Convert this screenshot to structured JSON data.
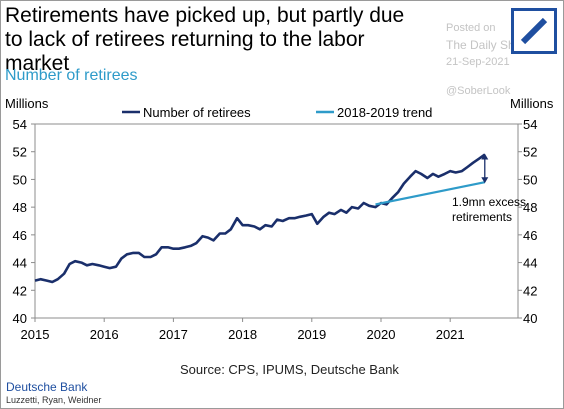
{
  "header": {
    "title": "Retirements have picked up, but partly due to lack of retirees returning to the labor market",
    "subtitle": "Number of retirees"
  },
  "watermark": {
    "posted_on": "Posted on",
    "site": "The Daily Shot",
    "date": "21-Sep-2021",
    "handle": "@SoberLook"
  },
  "footer": {
    "source": "Source: CPS, IPUMS, Deutsche Bank",
    "bank": "Deutsche Bank",
    "authors": "Luzzetti, Ryan, Weidner"
  },
  "colors": {
    "series": "#1a2f6b",
    "trend": "#2e9bc9",
    "logo": "#1f4fa0"
  },
  "chart_data": {
    "type": "line",
    "ylabel_left": "Millions",
    "ylabel_right": "Millions",
    "ylim": [
      40,
      54
    ],
    "yticks": [
      40,
      42,
      44,
      46,
      48,
      50,
      52,
      54
    ],
    "xlim": [
      2015,
      2021.98
    ],
    "xticks": [
      2015,
      2016,
      2017,
      2018,
      2019,
      2020,
      2021
    ],
    "legend_position": "top",
    "series": [
      {
        "name": "Number of retirees",
        "color": "#1a2f6b",
        "x": [
          2015.0,
          2015.08,
          2015.17,
          2015.25,
          2015.33,
          2015.42,
          2015.5,
          2015.58,
          2015.67,
          2015.75,
          2015.83,
          2015.92,
          2016.0,
          2016.08,
          2016.17,
          2016.25,
          2016.33,
          2016.42,
          2016.5,
          2016.58,
          2016.67,
          2016.75,
          2016.83,
          2016.92,
          2017.0,
          2017.08,
          2017.17,
          2017.25,
          2017.33,
          2017.42,
          2017.5,
          2017.58,
          2017.67,
          2017.75,
          2017.83,
          2017.92,
          2018.0,
          2018.08,
          2018.17,
          2018.25,
          2018.33,
          2018.42,
          2018.5,
          2018.58,
          2018.67,
          2018.75,
          2018.83,
          2018.92,
          2019.0,
          2019.08,
          2019.17,
          2019.25,
          2019.33,
          2019.42,
          2019.5,
          2019.58,
          2019.67,
          2019.75,
          2019.83,
          2019.92,
          2020.0,
          2020.08,
          2020.17,
          2020.25,
          2020.33,
          2020.42,
          2020.5,
          2020.58,
          2020.67,
          2020.75,
          2020.83,
          2020.92,
          2021.0,
          2021.08,
          2021.17,
          2021.25,
          2021.33,
          2021.42,
          2021.5
        ],
        "values": [
          42.7,
          42.8,
          42.7,
          42.6,
          42.8,
          43.2,
          43.9,
          44.1,
          44.0,
          43.8,
          43.9,
          43.8,
          43.7,
          43.6,
          43.7,
          44.3,
          44.6,
          44.7,
          44.7,
          44.4,
          44.4,
          44.6,
          45.1,
          45.1,
          45.0,
          45.0,
          45.1,
          45.2,
          45.4,
          45.9,
          45.8,
          45.6,
          46.1,
          46.1,
          46.4,
          47.2,
          46.7,
          46.7,
          46.6,
          46.4,
          46.7,
          46.6,
          47.1,
          47.0,
          47.2,
          47.2,
          47.3,
          47.4,
          47.5,
          46.8,
          47.3,
          47.6,
          47.5,
          47.8,
          47.6,
          48.0,
          47.9,
          48.3,
          48.1,
          48.0,
          48.3,
          48.2,
          48.7,
          49.1,
          49.7,
          50.2,
          50.6,
          50.4,
          50.1,
          50.4,
          50.2,
          50.4,
          50.6,
          50.5,
          50.6,
          50.9,
          51.2,
          51.5,
          51.8
        ]
      },
      {
        "name": "2018-2019 trend",
        "color": "#2e9bc9",
        "x": [
          2019.92,
          2021.5
        ],
        "values": [
          48.2,
          49.8
        ]
      }
    ],
    "annotations": [
      {
        "text_line1": "1.9mn excess",
        "text_line2": "retirements",
        "x": 2021.5,
        "y_from": 49.8,
        "y_to": 51.8
      }
    ]
  }
}
